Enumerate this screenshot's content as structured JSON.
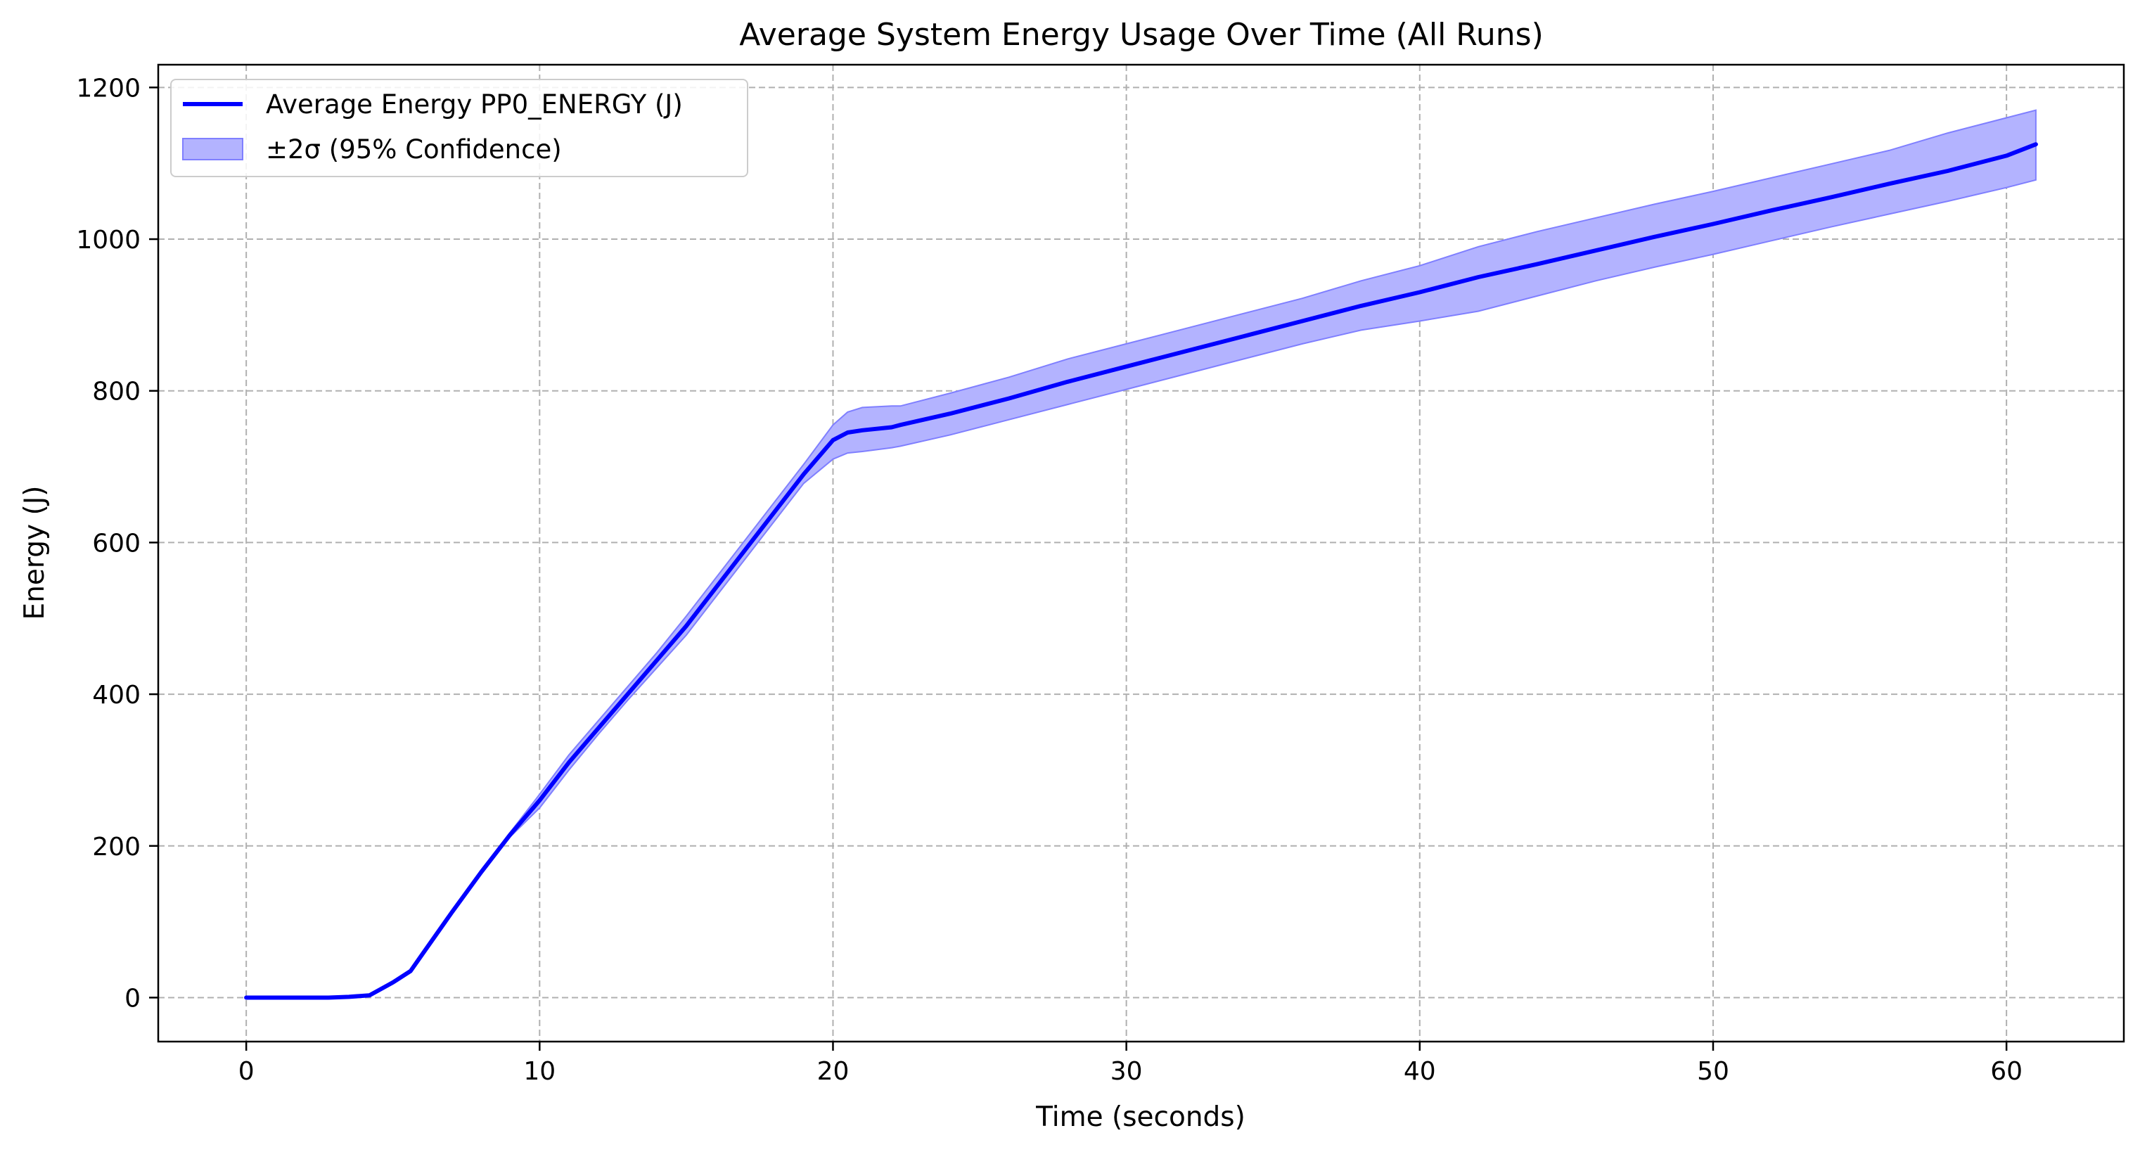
{
  "chart_data": {
    "type": "line",
    "title": "Average System Energy Usage Over Time (All Runs)",
    "xlabel": "Time (seconds)",
    "ylabel": "Energy (J)",
    "xlim": [
      -3,
      64
    ],
    "ylim": [
      -58,
      1230
    ],
    "xticks": [
      0,
      10,
      20,
      30,
      40,
      50,
      60
    ],
    "yticks": [
      0,
      200,
      400,
      600,
      800,
      1000,
      1200
    ],
    "grid": true,
    "legend_position": "upper left",
    "colors": {
      "line": "#0000ff",
      "band_fill": "#b3b3ff",
      "band_edge": "#7f7fff",
      "grid": "#b0b0b0"
    },
    "series": [
      {
        "name": "Average Energy PP0_ENERGY (J)",
        "kind": "line",
        "x": [
          0,
          1,
          2,
          2.8,
          3.5,
          4.2,
          5,
          5.6,
          6,
          7,
          8,
          9,
          10,
          11,
          12,
          13,
          14,
          15,
          16,
          17,
          18,
          19,
          20,
          20.5,
          21,
          22,
          22.3,
          24,
          26,
          28,
          30,
          32,
          34,
          36,
          38,
          40,
          42,
          44,
          46,
          48,
          50,
          52,
          54,
          56,
          58,
          60,
          61
        ],
        "values": [
          0,
          0,
          0,
          0,
          1,
          3,
          20,
          35,
          57,
          112,
          165,
          215,
          260,
          310,
          355,
          400,
          445,
          490,
          540,
          590,
          640,
          690,
          735,
          745,
          748,
          752,
          755,
          770,
          790,
          812,
          832,
          852,
          872,
          892,
          912,
          930,
          950,
          967,
          985,
          1003,
          1020,
          1038,
          1055,
          1073,
          1090,
          1110,
          1125
        ]
      },
      {
        "name": "±2σ (95% Confidence)",
        "kind": "band",
        "x": [
          0,
          1,
          2,
          2.8,
          3.5,
          4.2,
          5,
          5.6,
          6,
          7,
          8,
          9,
          10,
          11,
          12,
          13,
          14,
          15,
          16,
          17,
          18,
          19,
          20,
          20.5,
          21,
          22,
          22.3,
          24,
          26,
          28,
          30,
          32,
          34,
          36,
          38,
          40,
          42,
          44,
          46,
          48,
          50,
          52,
          54,
          56,
          58,
          60,
          61
        ],
        "lower": [
          0,
          0,
          0,
          0,
          1,
          3,
          20,
          35,
          55,
          110,
          163,
          212,
          250,
          300,
          347,
          392,
          435,
          478,
          528,
          578,
          628,
          678,
          710,
          718,
          720,
          725,
          727,
          742,
          762,
          782,
          802,
          822,
          842,
          862,
          880,
          892,
          905,
          925,
          945,
          963,
          980,
          998,
          1016,
          1033,
          1050,
          1068,
          1078
        ],
        "upper": [
          0,
          0,
          0,
          0,
          1,
          3,
          20,
          35,
          59,
          114,
          167,
          218,
          268,
          320,
          365,
          410,
          455,
          503,
          553,
          603,
          653,
          703,
          755,
          772,
          778,
          780,
          780,
          797,
          818,
          842,
          862,
          882,
          902,
          922,
          945,
          965,
          990,
          1010,
          1028,
          1046,
          1063,
          1081,
          1099,
          1117,
          1140,
          1160,
          1170
        ]
      }
    ]
  }
}
